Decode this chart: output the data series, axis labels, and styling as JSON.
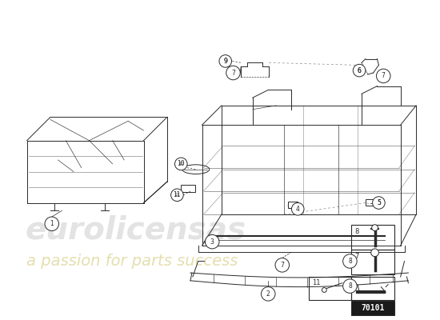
{
  "background_color": "#ffffff",
  "line_color": "#2a2a2a",
  "dashed_color": "#888888",
  "light_color": "#cccccc",
  "watermark_color_1": "#c8c8c8",
  "watermark_color_2": "#d4c87a",
  "part_number": "70101",
  "part_number_display": "70101",
  "label_r": 0.013,
  "figsize": [
    5.5,
    4.0
  ],
  "dpi": 100
}
